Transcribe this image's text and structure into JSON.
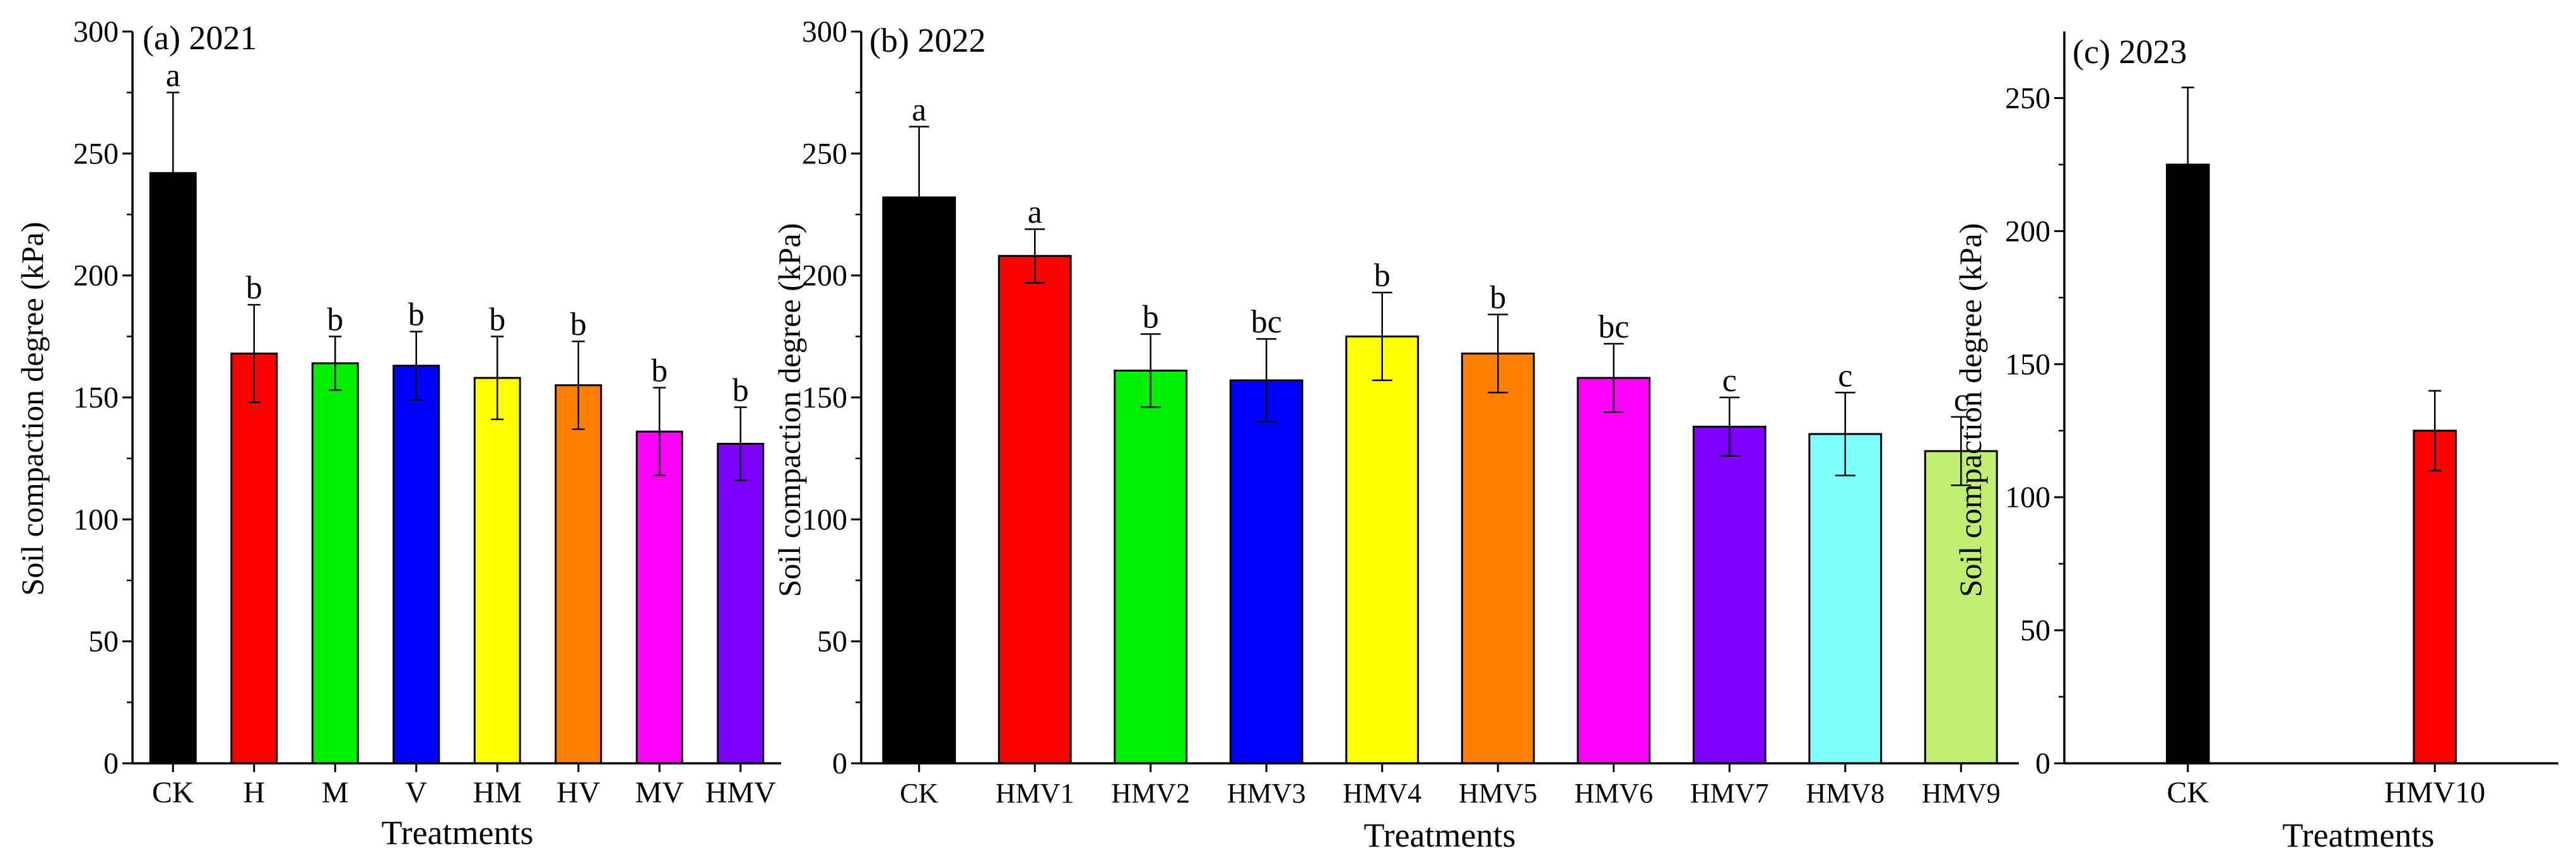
{
  "figure": {
    "panel_count": 3
  },
  "chart_data": [
    {
      "type": "bar",
      "panel_label": "(a) 2021",
      "title": "(a) 2021",
      "xlabel": "Treatments",
      "ylabel": "Soil compaction degree (kPa)",
      "ylim": [
        0,
        300
      ],
      "yticks": [
        0,
        50,
        100,
        150,
        200,
        250,
        300
      ],
      "categories": [
        "CK",
        "H",
        "M",
        "V",
        "HM",
        "HV",
        "MV",
        "HMV"
      ],
      "values": [
        242,
        168,
        164,
        163,
        158,
        155,
        136,
        131
      ],
      "errors": [
        33,
        20,
        11,
        14,
        17,
        18,
        18,
        15
      ],
      "letters": [
        "a",
        "b",
        "b",
        "b",
        "b",
        "b",
        "b",
        "b"
      ],
      "colors": [
        "#000000",
        "#ff0000",
        "#00ee00",
        "#0000ff",
        "#ffff00",
        "#ff8000",
        "#ff00ff",
        "#8000ff"
      ]
    },
    {
      "type": "bar",
      "panel_label": "(b) 2022",
      "title": "(b) 2022",
      "xlabel": "Treatments",
      "ylabel": "Soil compaction degree (kPa)",
      "ylim": [
        0,
        300
      ],
      "yticks": [
        0,
        50,
        100,
        150,
        200,
        250,
        300
      ],
      "categories": [
        "CK",
        "HMV1",
        "HMV2",
        "HMV3",
        "HMV4",
        "HMV5",
        "HMV6",
        "HMV7",
        "HMV8",
        "HMV9"
      ],
      "values": [
        232,
        208,
        161,
        157,
        175,
        168,
        158,
        138,
        135,
        128
      ],
      "errors": [
        29,
        11,
        15,
        17,
        18,
        16,
        14,
        12,
        17,
        14
      ],
      "letters": [
        "a",
        "a",
        "b",
        "bc",
        "b",
        "b",
        "bc",
        "c",
        "c",
        "c"
      ],
      "colors": [
        "#000000",
        "#ff0000",
        "#00ee00",
        "#0000ff",
        "#ffff00",
        "#ff8000",
        "#ff00ff",
        "#8000ff",
        "#80ffff",
        "#c0ee70"
      ]
    },
    {
      "type": "bar",
      "panel_label": "(c) 2023",
      "title": "(c) 2023",
      "xlabel": "Treatments",
      "ylabel": "Soil compaction degree (kPa)",
      "ylim": [
        0,
        275
      ],
      "yticks": [
        0,
        50,
        100,
        150,
        200,
        250
      ],
      "categories": [
        "CK",
        "HMV10"
      ],
      "values": [
        225,
        125
      ],
      "errors": [
        29,
        15
      ],
      "letters": [
        "",
        ""
      ],
      "colors": [
        "#000000",
        "#ff0000"
      ]
    }
  ]
}
